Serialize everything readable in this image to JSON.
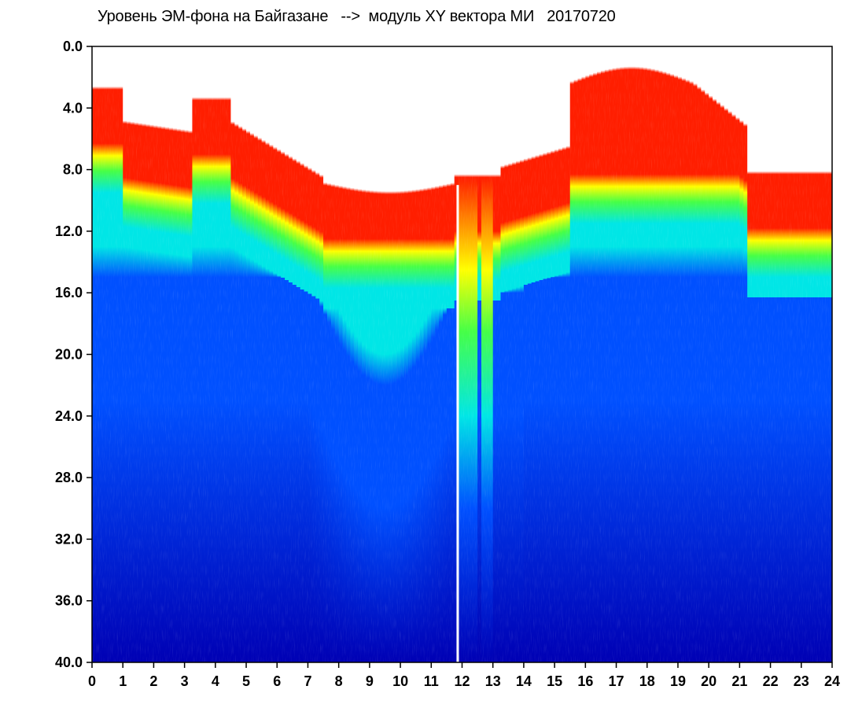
{
  "title": "Уровень ЭМ-фона на Байгазане   -->  модуль XY вектора МИ   20170720",
  "chart_data": {
    "type": "heatmap",
    "title": "Уровень ЭМ-фона на Байгазане   -->  модуль XY вектора МИ   20170720",
    "xlabel": "",
    "ylabel": "",
    "x_range": [
      0,
      24
    ],
    "y_range": [
      0.0,
      40.0
    ],
    "y_inverted": true,
    "x_tick_labels": [
      "0",
      "1",
      "2",
      "3",
      "4",
      "5",
      "6",
      "7",
      "8",
      "9",
      "10",
      "11",
      "12",
      "13",
      "14",
      "15",
      "16",
      "17",
      "18",
      "19",
      "20",
      "21",
      "22",
      "23",
      "24"
    ],
    "y_tick_labels": [
      "0.0",
      "4.0",
      "8.0",
      "12.0",
      "16.0",
      "20.0",
      "24.0",
      "28.0",
      "32.0",
      "36.0",
      "40.0"
    ],
    "colormap": [
      "#0000b4",
      "#0050ff",
      "#00e6e6",
      "#46ff46",
      "#ffff00",
      "#ff1e00"
    ],
    "background_color": "#ffffff",
    "grid": false,
    "legend": "none"
  }
}
